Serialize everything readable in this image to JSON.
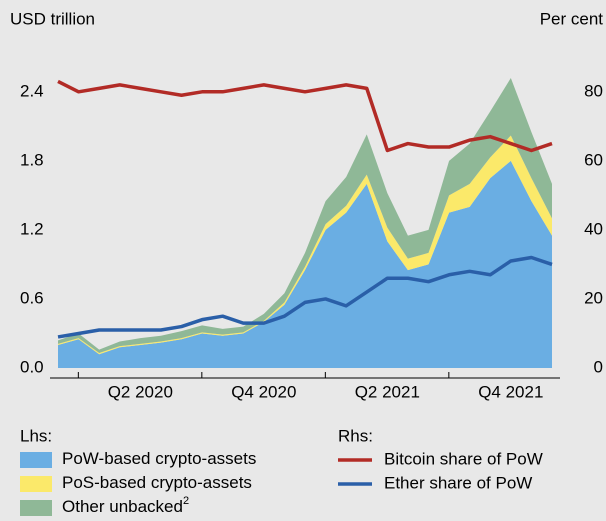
{
  "chart_data": {
    "type": "stacked-area-line",
    "ylabel": "USD trillion",
    "y2label": "Per cent",
    "categories": [
      null,
      null,
      null,
      null,
      "Q2 2020",
      null,
      null,
      null,
      null,
      null,
      "Q4 2020",
      null,
      null,
      null,
      null,
      null,
      "Q2 2021",
      null,
      null,
      null,
      null,
      null,
      "Q4 2021",
      null,
      null
    ],
    "ylim": [
      0,
      2.85
    ],
    "yticks": [
      {
        "value": 0,
        "label": "0.0"
      },
      0.6,
      1.2,
      1.8,
      2.4
    ],
    "y2lim": [
      0,
      95
    ],
    "y2ticks": [
      0,
      20,
      40,
      60,
      80
    ],
    "legend_groups": [
      "Lhs:",
      "Rhs:"
    ],
    "series": [
      {
        "name": "PoW-based crypto-assets",
        "color": "#6aaee3",
        "kind": "area",
        "values": [
          0.2,
          0.25,
          0.12,
          0.18,
          0.2,
          0.22,
          0.25,
          0.3,
          0.28,
          0.3,
          0.4,
          0.55,
          0.85,
          1.2,
          1.35,
          1.6,
          1.1,
          0.85,
          0.9,
          1.35,
          1.4,
          1.65,
          1.8,
          1.45,
          1.15
        ]
      },
      {
        "name": "PoS-based crypto-assets",
        "color": "#fbe96a",
        "kind": "area",
        "values": [
          0.01,
          0.01,
          0.01,
          0.01,
          0.01,
          0.01,
          0.01,
          0.01,
          0.01,
          0.01,
          0.01,
          0.02,
          0.03,
          0.05,
          0.06,
          0.08,
          0.12,
          0.1,
          0.1,
          0.15,
          0.2,
          0.18,
          0.22,
          0.2,
          0.15
        ]
      },
      {
        "name": "Other unbacked",
        "label_sup": "2",
        "color": "#8fb897",
        "kind": "area",
        "values": [
          0.03,
          0.04,
          0.03,
          0.04,
          0.05,
          0.05,
          0.06,
          0.06,
          0.05,
          0.05,
          0.06,
          0.08,
          0.12,
          0.2,
          0.25,
          0.35,
          0.3,
          0.2,
          0.2,
          0.3,
          0.35,
          0.4,
          0.5,
          0.4,
          0.3
        ]
      },
      {
        "name": "Bitcoin share of PoW",
        "color": "#b22b26",
        "kind": "line",
        "axis": "y2",
        "values": [
          83,
          80,
          81,
          82,
          81,
          80,
          79,
          80,
          80,
          81,
          82,
          81,
          80,
          81,
          82,
          81,
          63,
          65,
          64,
          64,
          66,
          67,
          65,
          63,
          65
        ]
      },
      {
        "name": "Ether share of PoW",
        "color": "#2a5fa8",
        "kind": "line",
        "axis": "y2",
        "values": [
          9,
          10,
          11,
          11,
          11,
          11,
          12,
          14,
          15,
          13,
          13,
          15,
          19,
          20,
          18,
          22,
          26,
          26,
          25,
          27,
          28,
          27,
          31,
          32,
          30
        ]
      }
    ]
  }
}
